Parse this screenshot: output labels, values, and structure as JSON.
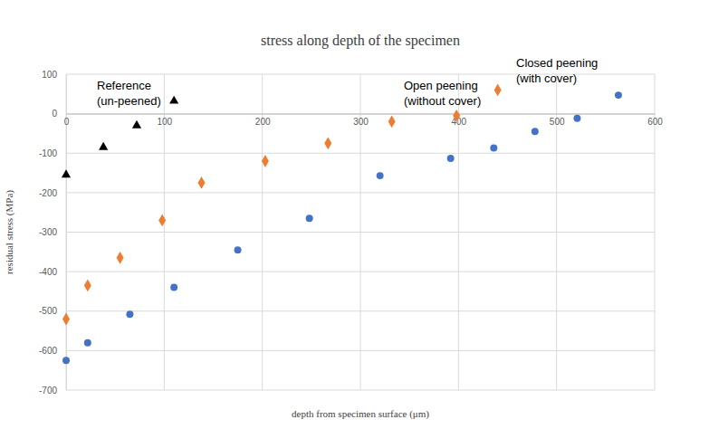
{
  "chart_data": {
    "type": "scatter",
    "title": "stress along depth of the specimen",
    "x_label": "depth from specimen surface (μm)",
    "y_label": "residual stress (MPa)",
    "xlim": [
      0,
      600
    ],
    "ylim": [
      -700,
      100
    ],
    "xticks": [
      0,
      100,
      200,
      300,
      400,
      500,
      600
    ],
    "yticks": [
      -700,
      -600,
      -500,
      -400,
      -300,
      -200,
      -100,
      0,
      100
    ],
    "grid": true,
    "annotations": [
      [
        "Reference",
        "(un-peened)"
      ],
      [
        "Open peening",
        "(without cover)"
      ],
      [
        "Closed peening",
        "(with cover)"
      ]
    ],
    "series": [
      {
        "color": "#000000",
        "marker": "triangle",
        "x": [
          0,
          38,
          72,
          110
        ],
        "values": [
          -155,
          -85,
          -30,
          32
        ]
      },
      {
        "color": "#ed7d31",
        "marker": "diamond",
        "x": [
          0,
          22,
          55,
          98,
          138,
          203,
          267,
          332,
          398,
          440
        ],
        "values": [
          -520,
          -435,
          -365,
          -270,
          -175,
          -120,
          -75,
          -20,
          -5,
          60
        ]
      },
      {
        "color": "#4472c4",
        "marker": "circle",
        "x": [
          0,
          22,
          65,
          110,
          175,
          248,
          320,
          392,
          436,
          478,
          521,
          563
        ],
        "values": [
          -625,
          -580,
          -508,
          -440,
          -345,
          -265,
          -157,
          -113,
          -87,
          -45,
          -12,
          47
        ]
      }
    ]
  }
}
